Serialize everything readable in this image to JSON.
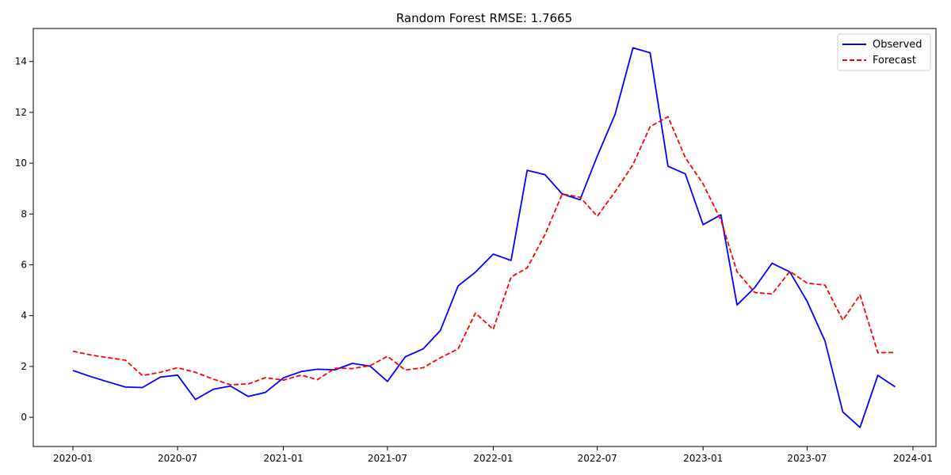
{
  "chart_data": {
    "type": "line",
    "title": "Random Forest RMSE: 1.7665",
    "xlabel": "",
    "ylabel": "",
    "x": [
      "2020-01",
      "2020-02",
      "2020-03",
      "2020-04",
      "2020-05",
      "2020-06",
      "2020-07",
      "2020-08",
      "2020-09",
      "2020-10",
      "2020-11",
      "2020-12",
      "2021-01",
      "2021-02",
      "2021-03",
      "2021-04",
      "2021-05",
      "2021-06",
      "2021-07",
      "2021-08",
      "2021-09",
      "2021-10",
      "2021-11",
      "2021-12",
      "2022-01",
      "2022-02",
      "2022-03",
      "2022-04",
      "2022-05",
      "2022-06",
      "2022-07",
      "2022-08",
      "2022-09",
      "2022-10",
      "2022-11",
      "2022-12",
      "2023-01",
      "2023-02",
      "2023-03",
      "2023-04",
      "2023-05",
      "2023-06",
      "2023-07",
      "2023-08",
      "2023-09",
      "2023-10",
      "2023-11",
      "2023-12"
    ],
    "series": [
      {
        "name": "Observed",
        "color": "#0000ff",
        "style": "solid",
        "values": [
          1.84,
          1.6,
          1.4,
          1.19,
          1.17,
          1.58,
          1.66,
          0.7,
          1.1,
          1.23,
          0.82,
          0.98,
          1.55,
          1.8,
          1.89,
          1.87,
          2.12,
          2.01,
          1.41,
          2.38,
          2.69,
          3.41,
          5.17,
          5.71,
          6.42,
          6.17,
          9.72,
          9.55,
          8.79,
          8.56,
          10.28,
          11.93,
          14.54,
          14.34,
          9.88,
          9.58,
          7.58,
          7.97,
          4.42,
          5.11,
          6.06,
          5.72,
          4.56,
          3.0,
          0.21,
          -0.4,
          1.65,
          1.2
        ]
      },
      {
        "name": "Forecast",
        "color": "#ff0000",
        "style": "dashed",
        "values": [
          2.6,
          2.45,
          2.35,
          2.25,
          1.64,
          1.77,
          1.95,
          1.77,
          1.5,
          1.28,
          1.31,
          1.56,
          1.46,
          1.66,
          1.48,
          1.93,
          1.92,
          2.03,
          2.4,
          1.86,
          1.95,
          2.34,
          2.69,
          4.1,
          3.46,
          5.52,
          5.88,
          7.19,
          8.79,
          8.66,
          7.91,
          8.88,
          9.94,
          11.44,
          11.83,
          10.22,
          9.18,
          7.76,
          5.73,
          4.91,
          4.85,
          5.74,
          5.28,
          5.2,
          3.82,
          4.82,
          2.54,
          2.55
        ]
      }
    ],
    "x_ticks": [
      "2020-01",
      "2020-07",
      "2021-01",
      "2021-07",
      "2022-01",
      "2022-07",
      "2023-01",
      "2023-07",
      "2024-01"
    ],
    "y_ticks": [
      0,
      2,
      4,
      6,
      8,
      10,
      12,
      14
    ],
    "xlim": [
      "2019-10-24",
      "2024-02-10"
    ],
    "ylim": [
      -1.15,
      15.3
    ],
    "grid": false,
    "legend_position": "upper-right"
  }
}
